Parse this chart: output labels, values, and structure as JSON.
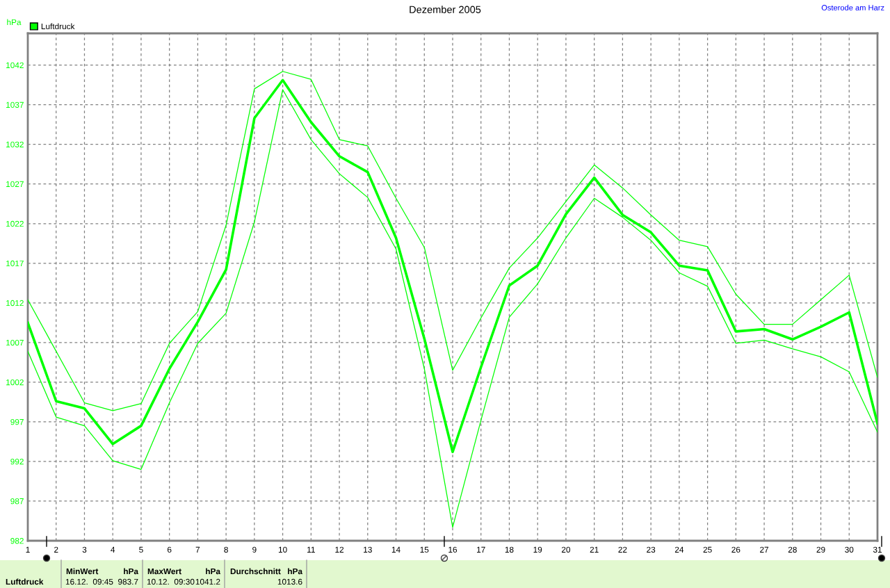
{
  "chart_data": {
    "type": "line",
    "title": "Dezember 2005",
    "subtitle": "Osterode am Harz",
    "ylabel": "hPa",
    "x": [
      1,
      2,
      3,
      4,
      5,
      6,
      7,
      8,
      9,
      10,
      11,
      12,
      13,
      14,
      15,
      16,
      17,
      18,
      19,
      20,
      21,
      22,
      23,
      24,
      25,
      26,
      27,
      28,
      29,
      30,
      31
    ],
    "xlim": [
      1,
      31
    ],
    "xticks": [
      1,
      2,
      3,
      4,
      5,
      6,
      7,
      8,
      9,
      10,
      11,
      12,
      13,
      14,
      15,
      16,
      17,
      18,
      19,
      20,
      21,
      22,
      23,
      24,
      25,
      26,
      27,
      28,
      29,
      30,
      31
    ],
    "ylim": [
      982,
      1046
    ],
    "yticks": [
      982,
      987,
      992,
      997,
      1002,
      1007,
      1012,
      1017,
      1022,
      1027,
      1032,
      1037,
      1042
    ],
    "series": [
      {
        "name": "Luftdruck",
        "color": "#00ff00",
        "values": [
          1009.5,
          999.6,
          998.7,
          994.2,
          996.5,
          1003.7,
          1009.6,
          1016.2,
          1035.3,
          1040.1,
          1034.8,
          1030.5,
          1028.5,
          1020.2,
          1007.5,
          993.2,
          1003.9,
          1014.2,
          1016.7,
          1023.2,
          1027.8,
          1023.1,
          1020.9,
          1016.7,
          1016.1,
          1008.4,
          1008.7,
          1007.4,
          1009.0,
          1010.8,
          996.8
        ]
      },
      {
        "color": "#00ff00",
        "values": [
          1012.4,
          1005.9,
          999.4,
          998.4,
          999.3,
          1006.9,
          1010.9,
          1021.8,
          1039.0,
          1041.2,
          1040.2,
          1032.6,
          1031.8,
          1025.2,
          1019.0,
          1003.5,
          1010.1,
          1016.4,
          1020.2,
          1024.8,
          1029.4,
          1026.5,
          1023.1,
          1019.9,
          1019.1,
          1013.1,
          1009.3,
          1009.3,
          1012.4,
          1015.5,
          1002.6
        ]
      },
      {
        "color": "#00ff00",
        "values": [
          1005.9,
          997.6,
          996.5,
          992.1,
          991.0,
          999.4,
          1006.9,
          1010.7,
          1022.2,
          1038.9,
          1032.6,
          1028.3,
          1025.3,
          1018.8,
          1003.7,
          983.7,
          997.2,
          1010.2,
          1014.4,
          1020.2,
          1025.2,
          1022.8,
          1019.9,
          1015.8,
          1014.1,
          1006.9,
          1007.3,
          1006.2,
          1005.2,
          1003.3,
          995.7
        ]
      }
    ],
    "grid": true,
    "legend": "top left",
    "line_style": "solid",
    "annotations": [
      "Luftdruck",
      "MinWert",
      "hPa",
      "16.12.  09:45",
      "983.7",
      "MaxWert",
      "hPa",
      "10.12.  09:30",
      "1041.2",
      "Durchschnitt",
      "hPa",
      "1013.6"
    ]
  }
}
